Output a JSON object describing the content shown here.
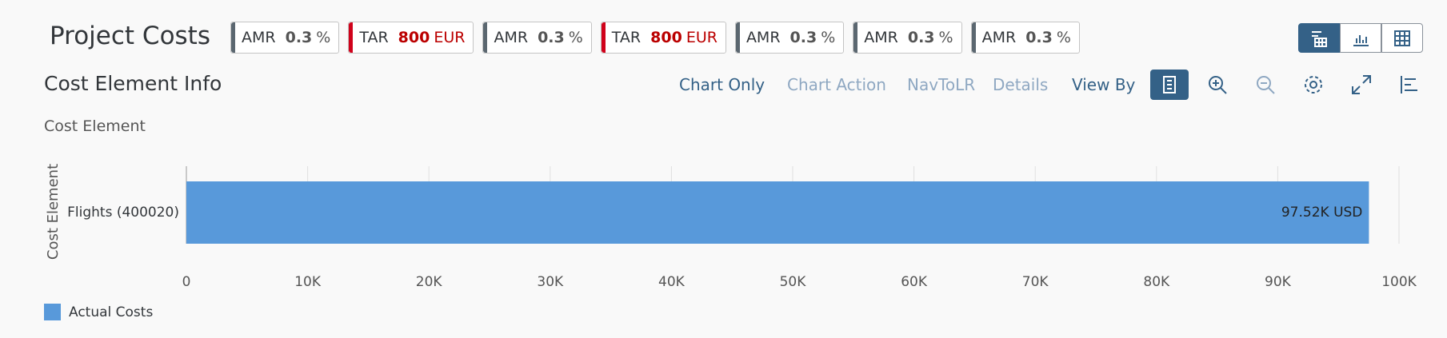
{
  "header": {
    "title": "Project Costs",
    "tags": [
      {
        "name": "AMR",
        "value": 0.3,
        "unit": "%",
        "color": "#5b6770"
      },
      {
        "name": "TAR",
        "value": 800,
        "unit": "EUR",
        "color": "#d0021b"
      },
      {
        "name": "AMR",
        "value": 0.3,
        "unit": "%",
        "color": "#5b6770"
      },
      {
        "name": "TAR",
        "value": 800,
        "unit": "EUR",
        "color": "#d0021b"
      },
      {
        "name": "AMR",
        "value": 0.3,
        "unit": "%",
        "color": "#5b6770"
      },
      {
        "name": "AMR",
        "value": 0.3,
        "unit": "%",
        "color": "#5b6770"
      },
      {
        "name": "AMR",
        "value": 0.3,
        "unit": "%",
        "color": "#5b6770"
      }
    ]
  },
  "card": {
    "title": "Cost Element Info",
    "subtitle": "Cost Element",
    "actions": [
      "Chart Only",
      "Chart Action",
      "NavToLR",
      "Details",
      "View By"
    ]
  },
  "chart_data": {
    "type": "bar",
    "orientation": "horizontal",
    "y_axis_label": "Cost Element",
    "categories": [
      "Flights (400020)"
    ],
    "series": [
      {
        "name": "Actual Costs",
        "color": "#5899da",
        "values": [
          97520
        ],
        "value_labels": [
          "97.52K USD"
        ]
      }
    ],
    "xlim": [
      0,
      100000
    ],
    "xticks": [
      0,
      {
        "value": 10000,
        "label": "10K"
      },
      {
        "value": 20000,
        "label": "20K"
      },
      {
        "value": 30000,
        "label": "30K"
      },
      {
        "value": 40000,
        "label": "40K"
      },
      {
        "value": 50000,
        "label": "50K"
      },
      {
        "value": 60000,
        "label": "60K"
      },
      {
        "value": 70000,
        "label": "70K"
      },
      {
        "value": 80000,
        "label": "80K"
      },
      {
        "value": 90000,
        "label": "90K"
      },
      {
        "value": 100000,
        "label": "100K"
      }
    ],
    "grid": true
  }
}
